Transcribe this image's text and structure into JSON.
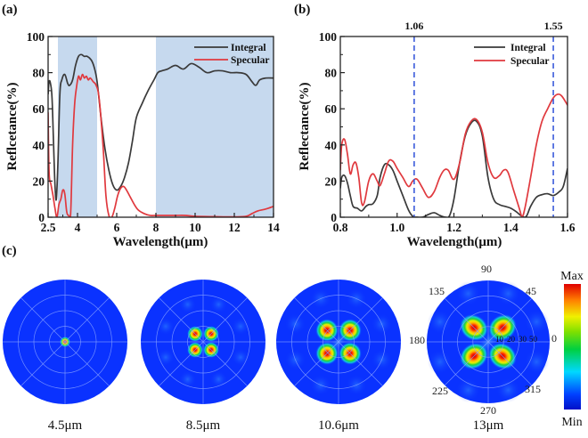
{
  "panels": {
    "a": "(a)",
    "b": "(b)",
    "c": "(c)"
  },
  "chart_data": [
    {
      "id": "a",
      "type": "line",
      "title": "",
      "xlabel": "Wavelength(μm)",
      "ylabel": "Reflcetance(%)",
      "xlim": [
        2.5,
        14
      ],
      "ylim": [
        0,
        100
      ],
      "xticks": [
        {
          "v": 2.5,
          "label": "2.5"
        },
        {
          "v": 4,
          "label": "4"
        },
        {
          "v": 6,
          "label": "6"
        },
        {
          "v": 8,
          "label": "8"
        },
        {
          "v": 10,
          "label": "10"
        },
        {
          "v": 12,
          "label": "12"
        },
        {
          "v": 14,
          "label": "14"
        }
      ],
      "yticks": [
        {
          "v": 0,
          "label": "0"
        },
        {
          "v": 20,
          "label": "20"
        },
        {
          "v": 40,
          "label": "40"
        },
        {
          "v": 60,
          "label": "60"
        },
        {
          "v": 80,
          "label": "80"
        },
        {
          "v": 100,
          "label": "100"
        }
      ],
      "shaded_bands": [
        {
          "from": 3.0,
          "to": 5.0,
          "color": "#c6d9ee"
        },
        {
          "from": 8.0,
          "to": 14.0,
          "color": "#c6d9ee"
        }
      ],
      "legend": {
        "position": "top-right"
      },
      "series": [
        {
          "name": "Integral",
          "color": "#3a3a3a",
          "x": [
            2.5,
            2.55,
            2.62,
            2.7,
            2.78,
            2.85,
            2.92,
            3.0,
            3.1,
            3.2,
            3.35,
            3.5,
            3.6,
            3.75,
            3.9,
            4.05,
            4.2,
            4.35,
            4.5,
            4.7,
            4.85,
            5.0,
            5.2,
            5.4,
            5.6,
            5.8,
            6.0,
            6.2,
            6.4,
            6.6,
            6.8,
            7.0,
            7.3,
            7.6,
            7.9,
            8.1,
            8.3,
            8.6,
            9.0,
            9.4,
            9.8,
            10.2,
            10.6,
            11.0,
            11.4,
            11.8,
            12.2,
            12.6,
            12.9,
            13.1,
            13.3,
            13.6,
            14.0
          ],
          "y": [
            68,
            75,
            74,
            66,
            40,
            18,
            10,
            30,
            68,
            76,
            79,
            74,
            73,
            76,
            84,
            89,
            90,
            89,
            89,
            87,
            83,
            75,
            55,
            38,
            26,
            18,
            15,
            17,
            22,
            30,
            42,
            55,
            63,
            70,
            76,
            80,
            81,
            82,
            84,
            82,
            85,
            83,
            80,
            81,
            81,
            80,
            80,
            79,
            75,
            73,
            76,
            77,
            77
          ]
        },
        {
          "name": "Specular",
          "color": "#e0393e",
          "x": [
            2.5,
            2.55,
            2.65,
            2.75,
            2.85,
            2.95,
            3.05,
            3.15,
            3.25,
            3.35,
            3.45,
            3.55,
            3.65,
            3.75,
            3.85,
            3.95,
            4.05,
            4.15,
            4.25,
            4.35,
            4.45,
            4.55,
            4.65,
            4.8,
            4.95,
            5.1,
            5.3,
            5.45,
            5.6,
            5.75,
            5.9,
            6.05,
            6.2,
            6.35,
            6.5,
            6.7,
            6.9,
            7.1,
            7.4,
            7.7,
            8.0,
            8.5,
            9.0,
            9.5,
            10.0,
            11.0,
            12.0,
            12.6,
            12.9,
            13.2,
            13.6,
            14.0
          ],
          "y": [
            58,
            25,
            18,
            12,
            5,
            0,
            7,
            10,
            15,
            13,
            3,
            1,
            2,
            40,
            62,
            72,
            78,
            76,
            79,
            77,
            78,
            76,
            77,
            75,
            73,
            66,
            40,
            12,
            1,
            0,
            5,
            12,
            16,
            17,
            15,
            11,
            7,
            4,
            2,
            1,
            1,
            1,
            1,
            1,
            0.5,
            0.3,
            0.2,
            0.5,
            2,
            3.5,
            4.5,
            6
          ]
        }
      ]
    },
    {
      "id": "b",
      "type": "line",
      "title": "",
      "xlabel": "Wavelength(μm)",
      "ylabel": "Reflectance(%)",
      "xlim": [
        0.8,
        1.6
      ],
      "ylim": [
        0,
        100
      ],
      "xticks": [
        {
          "v": 0.8,
          "label": "0.8"
        },
        {
          "v": 1.0,
          "label": "1.0"
        },
        {
          "v": 1.2,
          "label": "1.2"
        },
        {
          "v": 1.4,
          "label": "1.4"
        },
        {
          "v": 1.6,
          "label": "1.6"
        }
      ],
      "yticks": [
        {
          "v": 0,
          "label": "0"
        },
        {
          "v": 20,
          "label": "20"
        },
        {
          "v": 40,
          "label": "40"
        },
        {
          "v": 60,
          "label": "60"
        },
        {
          "v": 80,
          "label": "80"
        },
        {
          "v": 100,
          "label": "100"
        }
      ],
      "vlines": [
        {
          "v": 1.06,
          "label": "1.06",
          "color": "#3b5bdb"
        },
        {
          "v": 1.55,
          "label": "1.55",
          "color": "#3b5bdb"
        }
      ],
      "legend": {
        "position": "top-right"
      },
      "series": [
        {
          "name": "Integral",
          "color": "#3a3a3a",
          "x": [
            0.8,
            0.805,
            0.815,
            0.825,
            0.835,
            0.845,
            0.86,
            0.875,
            0.89,
            0.9,
            0.915,
            0.93,
            0.94,
            0.955,
            0.97,
            0.985,
            1.0,
            1.02,
            1.04,
            1.055,
            1.07,
            1.09,
            1.11,
            1.13,
            1.15,
            1.17,
            1.185,
            1.2,
            1.22,
            1.24,
            1.26,
            1.28,
            1.3,
            1.32,
            1.34,
            1.36,
            1.38,
            1.4,
            1.42,
            1.44,
            1.455,
            1.47,
            1.49,
            1.51,
            1.53,
            1.55,
            1.57,
            1.585,
            1.6
          ],
          "y": [
            16,
            22,
            23,
            19,
            12,
            6,
            5,
            3.5,
            6,
            7,
            7.5,
            12,
            22,
            29,
            29,
            26,
            20,
            12,
            4,
            0.5,
            0,
            0,
            1.5,
            2.5,
            1,
            0,
            1,
            10,
            30,
            45,
            52,
            53,
            45,
            22,
            10,
            7,
            6,
            5,
            3,
            0.5,
            0.5,
            6,
            11,
            12.5,
            13,
            12,
            14,
            17,
            27
          ]
        },
        {
          "name": "Specular",
          "color": "#e0393e",
          "x": [
            0.8,
            0.805,
            0.815,
            0.825,
            0.835,
            0.845,
            0.855,
            0.865,
            0.875,
            0.885,
            0.9,
            0.915,
            0.93,
            0.94,
            0.955,
            0.97,
            0.985,
            1.0,
            1.02,
            1.04,
            1.055,
            1.07,
            1.09,
            1.11,
            1.13,
            1.15,
            1.165,
            1.18,
            1.2,
            1.22,
            1.24,
            1.26,
            1.28,
            1.3,
            1.32,
            1.34,
            1.36,
            1.375,
            1.39,
            1.41,
            1.43,
            1.44,
            1.45,
            1.47,
            1.49,
            1.51,
            1.53,
            1.55,
            1.565,
            1.58,
            1.6
          ],
          "y": [
            26,
            40,
            43,
            35,
            24,
            29,
            30,
            22,
            8,
            8.5,
            20,
            24,
            20,
            17.5,
            24,
            31,
            31,
            27,
            22,
            17,
            20,
            21,
            16,
            11,
            14,
            22,
            26,
            26,
            21,
            30,
            46,
            53,
            54,
            47,
            30,
            22,
            23,
            26,
            25,
            15,
            5,
            0.5,
            5,
            22,
            40,
            53,
            60,
            66,
            68,
            67,
            62
          ]
        }
      ]
    },
    {
      "id": "c",
      "type": "heatmap",
      "title": "",
      "subtype": "polar",
      "angle_ticks": [
        "90",
        "45",
        "0",
        "315",
        "270",
        "225",
        "180",
        "135"
      ],
      "radial_ticks": [
        "10",
        "20",
        "30",
        "50"
      ],
      "colorbar": {
        "max_label": "Max",
        "min_label": "Min",
        "colormap": "jet"
      },
      "maps": [
        {
          "caption": "4.5μm",
          "pattern": "single-center-spot"
        },
        {
          "caption": "8.5μm",
          "pattern": "four-lobes-small"
        },
        {
          "caption": "10.6μm",
          "pattern": "four-lobes-medium"
        },
        {
          "caption": "13μm",
          "pattern": "four-lobes-large"
        }
      ]
    }
  ]
}
